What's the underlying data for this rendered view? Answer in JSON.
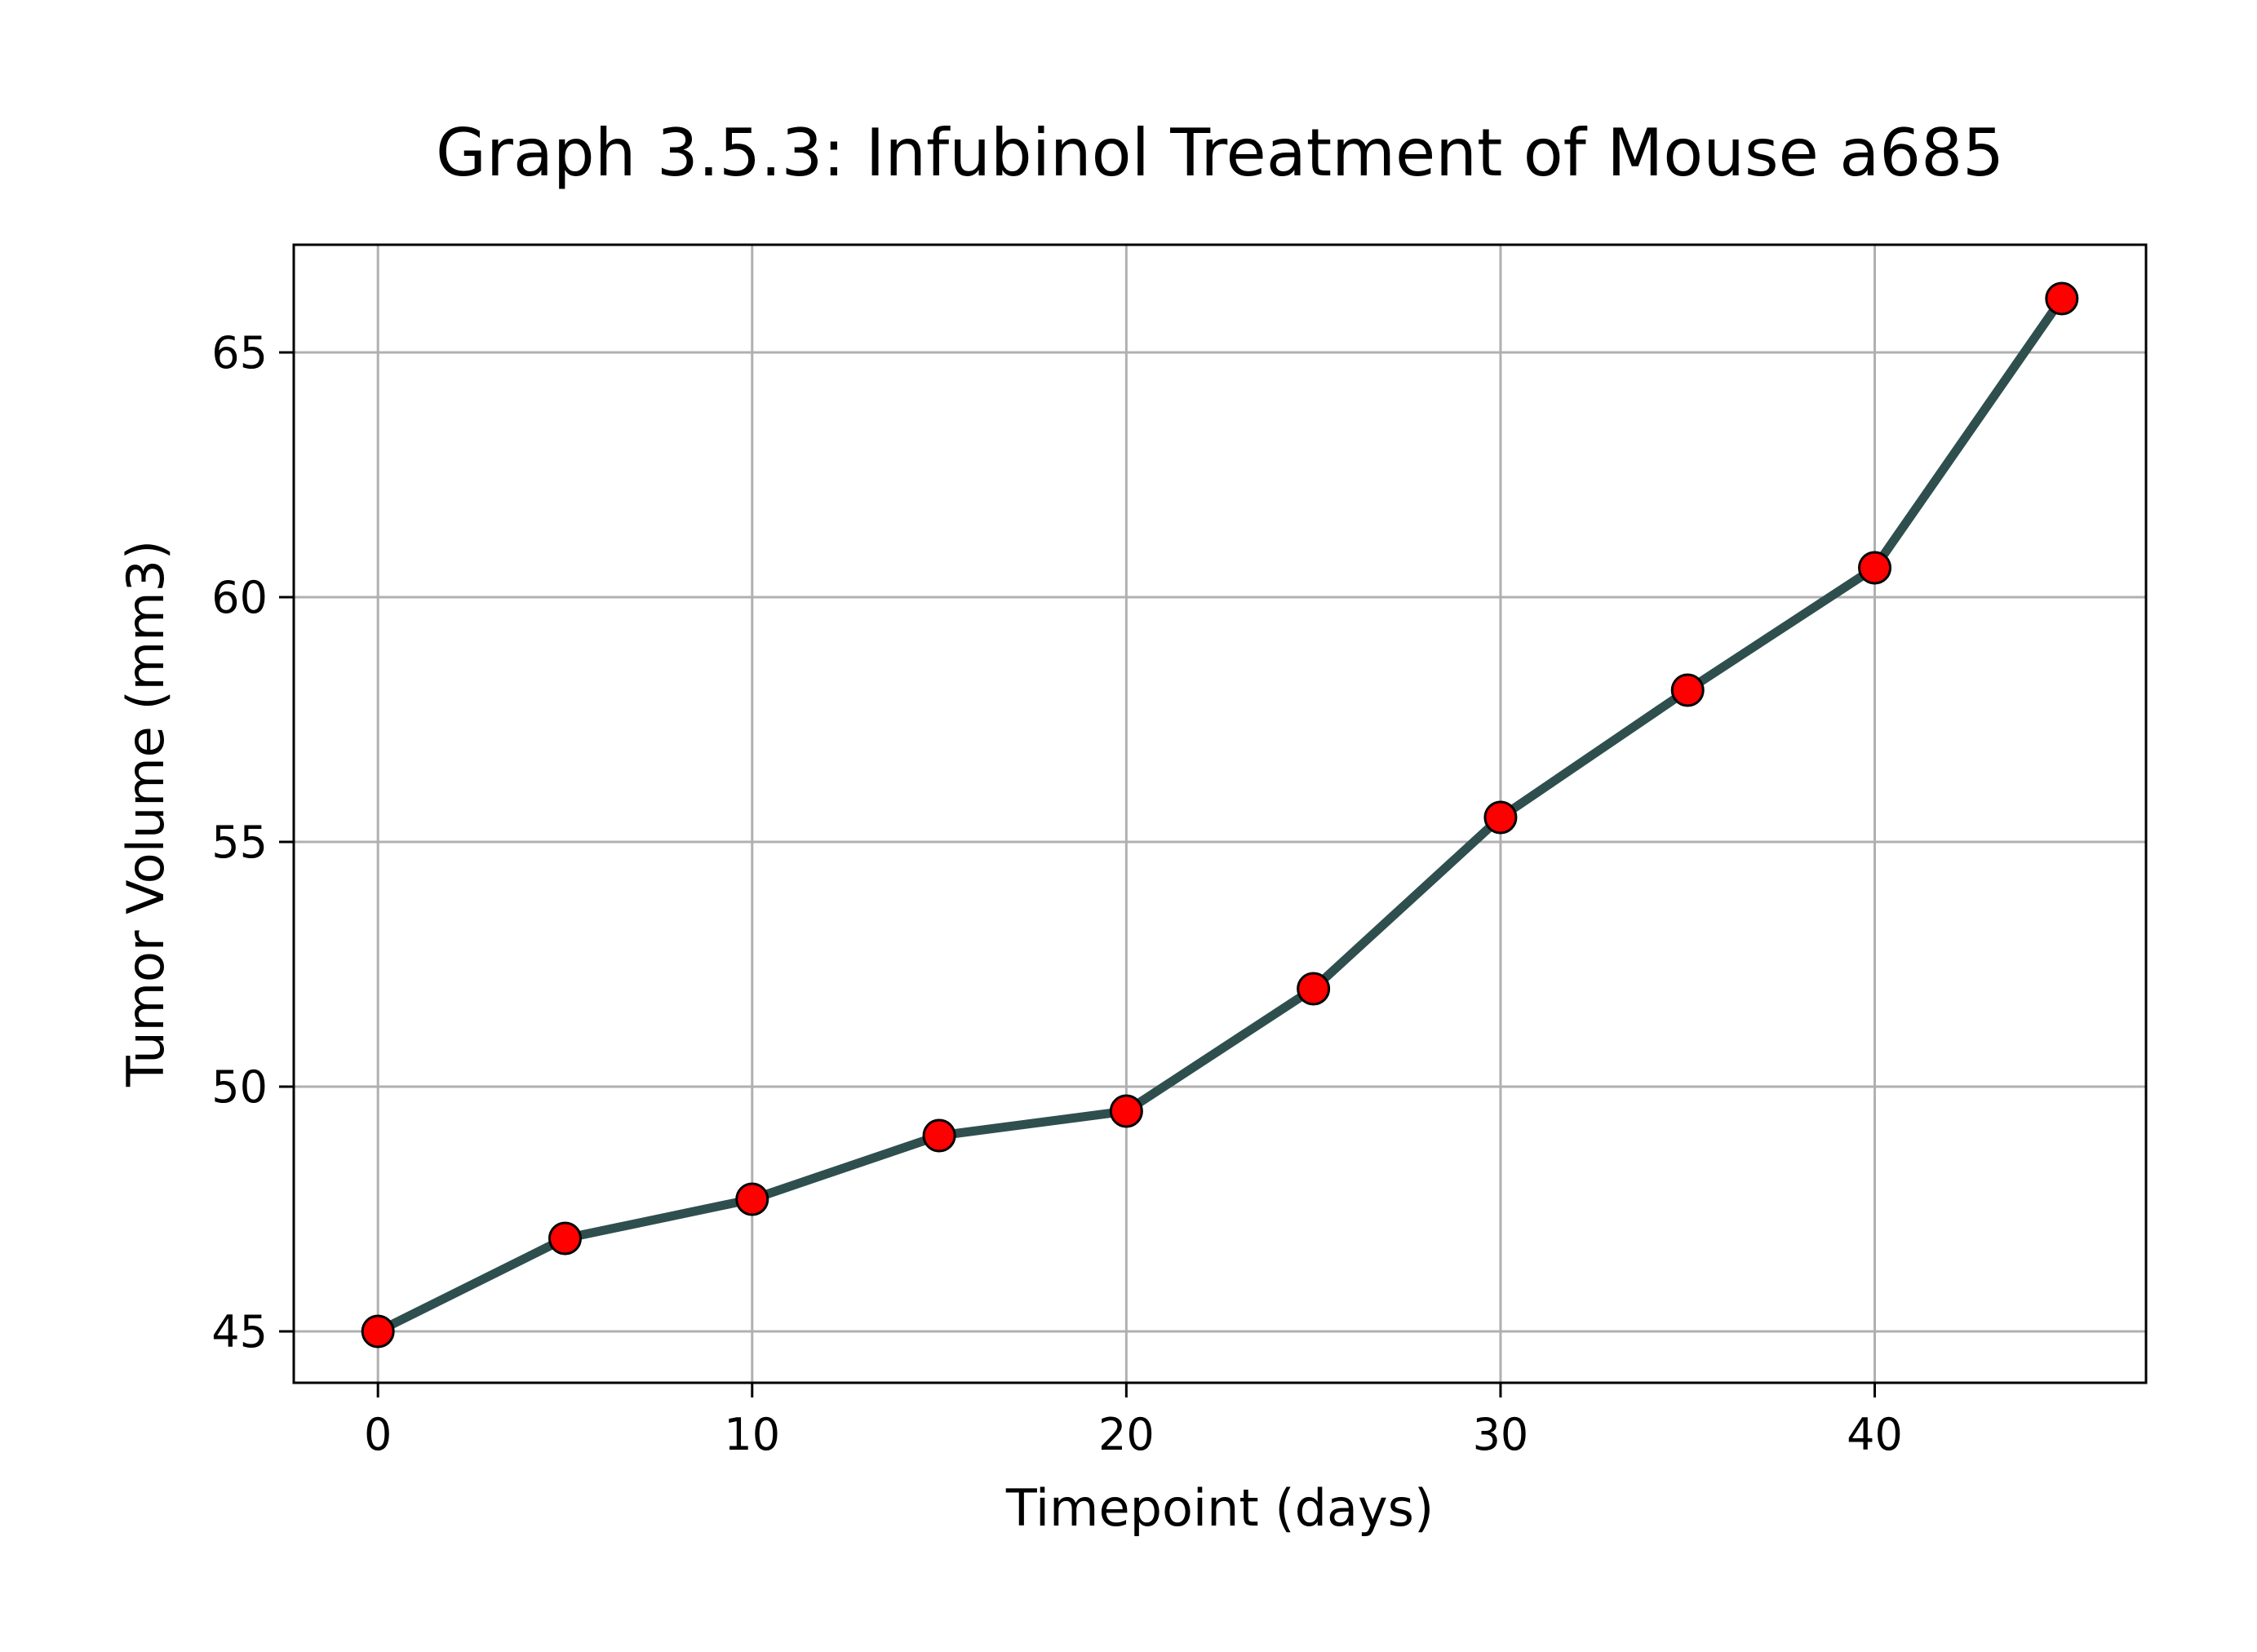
{
  "chart_data": {
    "type": "line",
    "title": "Graph 3.5.3: Infubinol Treatment of Mouse a685",
    "xlabel": "Timepoint (days)",
    "ylabel": "Tumor Volume (mm3)",
    "x": [
      0,
      5,
      10,
      15,
      20,
      25,
      30,
      35,
      40,
      45
    ],
    "series": [
      {
        "values": [
          45.0,
          46.9,
          47.7,
          49.0,
          49.5,
          52.0,
          55.5,
          58.1,
          60.6,
          66.1
        ]
      }
    ],
    "xlim": [
      -2.25,
      47.25
    ],
    "ylim": [
      43.95,
      67.2
    ],
    "xticks": [
      0,
      10,
      20,
      30,
      40
    ],
    "yticks": [
      45,
      50,
      55,
      60,
      65
    ],
    "grid": true,
    "legend": "none",
    "line_color": "#2f4f4f",
    "marker_face_color": "#ff0000",
    "marker_edge_color": "#000000"
  }
}
